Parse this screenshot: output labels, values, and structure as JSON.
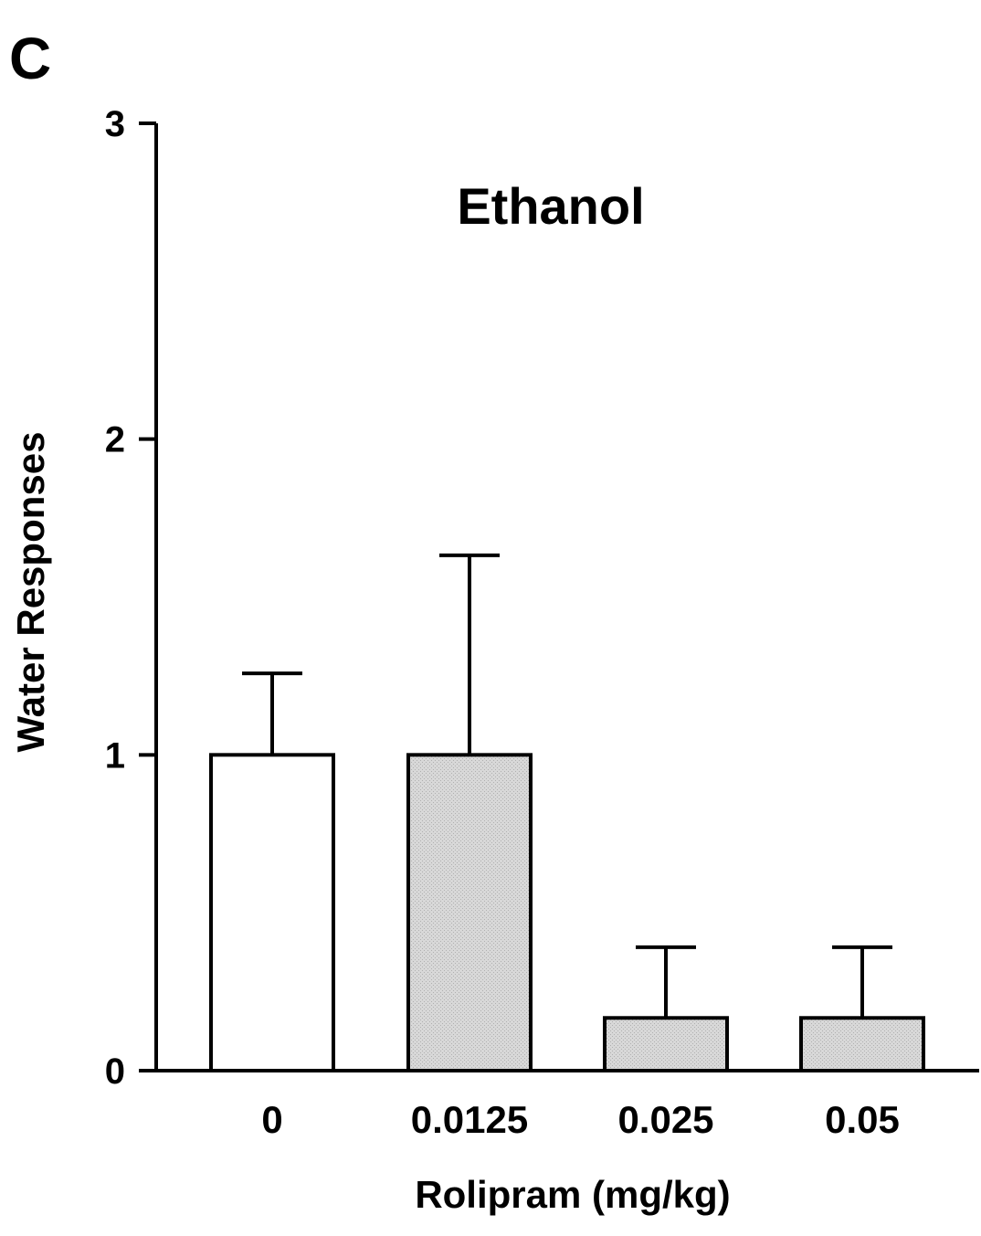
{
  "panel_label": "C",
  "chart_data": {
    "type": "bar",
    "title": "Ethanol",
    "xlabel": "Rolipram (mg/kg)",
    "ylabel": "Water Responses",
    "ylim": [
      0,
      3
    ],
    "yticks": [
      0,
      1,
      2,
      3
    ],
    "categories": [
      "0",
      "0.0125",
      "0.025",
      "0.05"
    ],
    "values": [
      1.0,
      1.0,
      0.167,
      0.167
    ],
    "errors": [
      0.258,
      0.632,
      0.224,
      0.224
    ],
    "bar_colors": [
      "#ffffff",
      "#d4d4d4",
      "#d4d4d4",
      "#d4d4d4"
    ],
    "grid": false,
    "legend": "none"
  }
}
